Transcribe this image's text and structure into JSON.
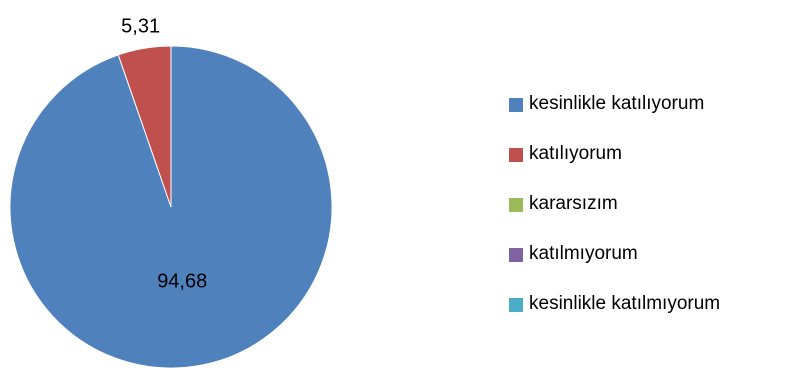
{
  "chart_data": {
    "type": "pie",
    "title": "",
    "slices": [
      {
        "label": "kesinlikle katılıyorum",
        "value": 94.68,
        "value_label": "94,68",
        "color": "#4F81BD"
      },
      {
        "label": "katılıyorum",
        "value": 5.31,
        "value_label": "5,31",
        "color": "#C0504D"
      },
      {
        "label": "kararsızım",
        "value": 0,
        "value_label": "",
        "color": "#9BBB59"
      },
      {
        "label": "katılmıyorum",
        "value": 0,
        "value_label": "",
        "color": "#8064A2"
      },
      {
        "label": "kesinlikle katılmıyorum",
        "value": 0,
        "value_label": "",
        "color": "#4BACC6"
      }
    ],
    "legend_position": "right"
  }
}
